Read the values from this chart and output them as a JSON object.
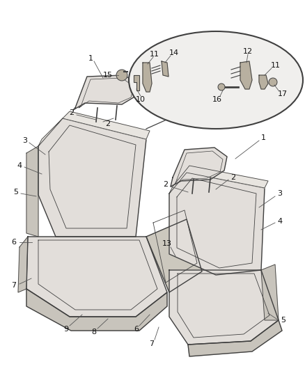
{
  "bg_color": "#ffffff",
  "line_color": "#404040",
  "fig_width": 4.38,
  "fig_height": 5.33,
  "dpi": 100,
  "seat_fill": "#d8d4cc",
  "seat_fill2": "#c8c4bc",
  "seat_fill3": "#e2deda",
  "center_fill": "#ccc8be",
  "ellipse_fill": "#f0efed",
  "callout_part_fill": "#b8b0a0"
}
